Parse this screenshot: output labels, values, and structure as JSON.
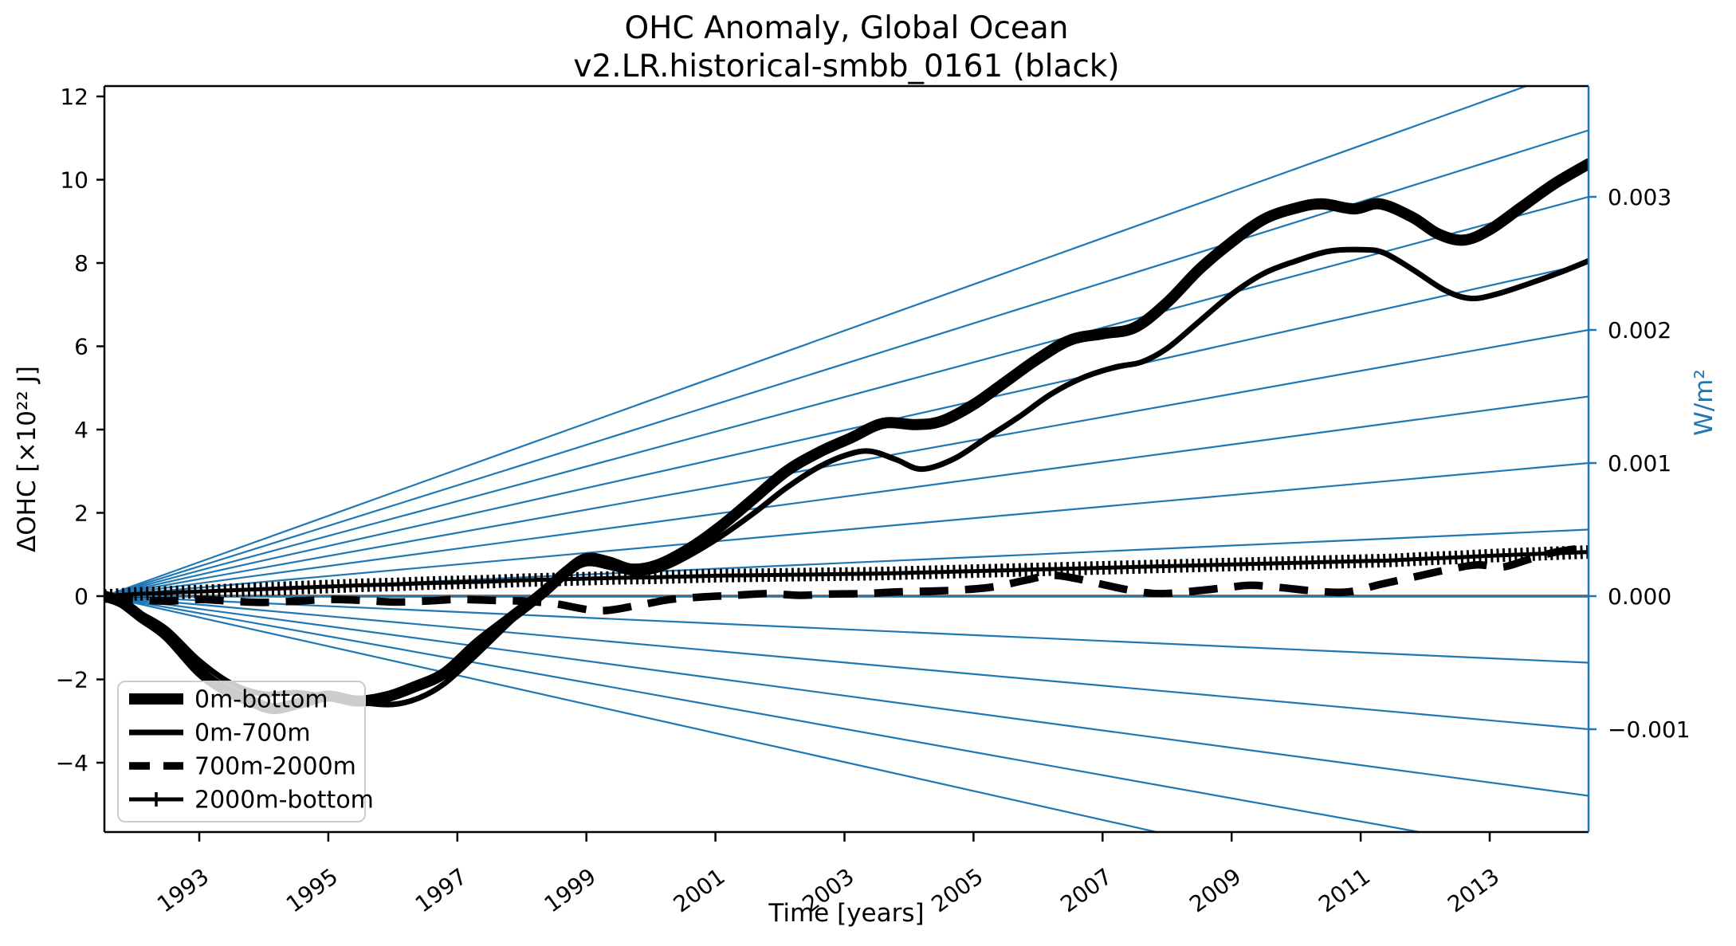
{
  "title": {
    "line1": "OHC Anomaly, Global Ocean",
    "line2": "v2.LR.historical-smbb_0161 (black)"
  },
  "axes": {
    "x": {
      "label": "Time [years]",
      "ticks": [
        {
          "v": 1993,
          "label": "1993"
        },
        {
          "v": 1995,
          "label": "1995"
        },
        {
          "v": 1997,
          "label": "1997"
        },
        {
          "v": 1999,
          "label": "1999"
        },
        {
          "v": 2001,
          "label": "2001"
        },
        {
          "v": 2003,
          "label": "2003"
        },
        {
          "v": 2005,
          "label": "2005"
        },
        {
          "v": 2007,
          "label": "2007"
        },
        {
          "v": 2009,
          "label": "2009"
        },
        {
          "v": 2011,
          "label": "2011"
        },
        {
          "v": 2013,
          "label": "2013"
        }
      ],
      "range": [
        1991.53,
        2014.53
      ]
    },
    "y_left": {
      "label": "ΔOHC [×10²² J]",
      "ticks": [
        {
          "v": 12,
          "label": "12"
        },
        {
          "v": 10,
          "label": "10"
        },
        {
          "v": 8,
          "label": "8"
        },
        {
          "v": 6,
          "label": "6"
        },
        {
          "v": 4,
          "label": "4"
        },
        {
          "v": 2,
          "label": "2"
        },
        {
          "v": 0,
          "label": "0"
        },
        {
          "v": -2,
          "label": "−2"
        },
        {
          "v": -4,
          "label": "−4"
        }
      ],
      "range": [
        -5.66,
        12.25
      ]
    },
    "y_right": {
      "label": "W/m²",
      "ticks": [
        {
          "v": 0.003,
          "label": "0.003"
        },
        {
          "v": 0.002,
          "label": "0.002"
        },
        {
          "v": 0.001,
          "label": "0.001"
        },
        {
          "v": 0.0,
          "label": "0.000"
        },
        {
          "v": -0.001,
          "label": "−0.001"
        }
      ],
      "range": [
        -0.00177,
        0.00383
      ]
    }
  },
  "legend": {
    "items": [
      {
        "key": "0m-bottom",
        "label": "0m-bottom"
      },
      {
        "key": "0m-700m",
        "label": "0m-700m"
      },
      {
        "key": "700m-2000m",
        "label": "700m-2000m"
      },
      {
        "key": "2000m-bottom",
        "label": "2000m-bottom"
      }
    ]
  },
  "colors": {
    "curves": "#000000",
    "flux_lines": "#1f77b4",
    "right_axis": "#1f77b4",
    "legend_border": "#cccccc"
  },
  "chart_data": {
    "type": "line",
    "title": "OHC Anomaly, Global Ocean v2.LR.historical-smbb_0161 (black)",
    "xlabel": "Time [years]",
    "ylabel_left": "ΔOHC [×10²² J]",
    "ylabel_right": "W/m²",
    "xlim": [
      1991.53,
      2014.53
    ],
    "ylim_left": [
      -5.66,
      12.25
    ],
    "grid": false,
    "legend_position": "lower left",
    "flux_reference_lines": {
      "comment": "straight blue lines radiating from (1991.53, 0); slope labeled by right axis in W/m^2",
      "origin": {
        "year": 1991.53,
        "ohc": 0.0
      },
      "rates_w_per_m2": [
        -0.0025,
        -0.002,
        -0.0015,
        -0.001,
        -0.0005,
        0.0,
        0.0005,
        0.001,
        0.0015,
        0.002,
        0.0025,
        0.003,
        0.0035,
        0.004
      ],
      "ohc_units_per_0p0005_at_right_edge": 1.598
    },
    "series": [
      {
        "name": "0m-bottom",
        "style": "thick solid black",
        "points": [
          [
            1991.53,
            0
          ],
          [
            1991.8,
            -0.15
          ],
          [
            1992.1,
            -0.5
          ],
          [
            1992.5,
            -0.95
          ],
          [
            1993.0,
            -1.8
          ],
          [
            1993.4,
            -2.25
          ],
          [
            1993.8,
            -2.52
          ],
          [
            1994.15,
            -2.7
          ],
          [
            1994.6,
            -2.55
          ],
          [
            1995.0,
            -2.4
          ],
          [
            1995.45,
            -2.52
          ],
          [
            1995.9,
            -2.42
          ],
          [
            1996.3,
            -2.2
          ],
          [
            1996.8,
            -1.85
          ],
          [
            1997.3,
            -1.15
          ],
          [
            1997.8,
            -0.55
          ],
          [
            1998.3,
            0.05
          ],
          [
            1998.7,
            0.6
          ],
          [
            1999.0,
            0.9
          ],
          [
            1999.35,
            0.82
          ],
          [
            1999.7,
            0.65
          ],
          [
            2000.1,
            0.75
          ],
          [
            2000.6,
            1.15
          ],
          [
            2001.1,
            1.7
          ],
          [
            2001.6,
            2.35
          ],
          [
            2002.1,
            3.0
          ],
          [
            2002.6,
            3.45
          ],
          [
            2003.1,
            3.8
          ],
          [
            2003.6,
            4.15
          ],
          [
            2004.1,
            4.12
          ],
          [
            2004.5,
            4.2
          ],
          [
            2005.0,
            4.6
          ],
          [
            2005.5,
            5.15
          ],
          [
            2006.0,
            5.7
          ],
          [
            2006.5,
            6.15
          ],
          [
            2007.0,
            6.3
          ],
          [
            2007.5,
            6.45
          ],
          [
            2008.0,
            7.05
          ],
          [
            2008.5,
            7.85
          ],
          [
            2009.0,
            8.5
          ],
          [
            2009.5,
            9.05
          ],
          [
            2010.0,
            9.32
          ],
          [
            2010.4,
            9.42
          ],
          [
            2010.9,
            9.3
          ],
          [
            2011.3,
            9.42
          ],
          [
            2011.8,
            9.1
          ],
          [
            2012.2,
            8.7
          ],
          [
            2012.6,
            8.55
          ],
          [
            2013.0,
            8.8
          ],
          [
            2013.5,
            9.35
          ],
          [
            2014.0,
            9.9
          ],
          [
            2014.53,
            10.38
          ]
        ]
      },
      {
        "name": "0m-700m",
        "style": "medium solid black",
        "points": [
          [
            1991.53,
            0
          ],
          [
            1991.8,
            -0.12
          ],
          [
            1992.1,
            -0.42
          ],
          [
            1992.5,
            -0.8
          ],
          [
            1993.0,
            -1.55
          ],
          [
            1993.5,
            -2.1
          ],
          [
            1994.0,
            -2.35
          ],
          [
            1994.5,
            -2.32
          ],
          [
            1995.0,
            -2.42
          ],
          [
            1995.5,
            -2.55
          ],
          [
            1996.0,
            -2.6
          ],
          [
            1996.4,
            -2.45
          ],
          [
            1996.8,
            -2.1
          ],
          [
            1997.3,
            -1.4
          ],
          [
            1997.8,
            -0.65
          ],
          [
            1998.25,
            0
          ],
          [
            1998.7,
            0.52
          ],
          [
            1999.0,
            0.78
          ],
          [
            1999.4,
            0.68
          ],
          [
            1999.75,
            0.55
          ],
          [
            2000.15,
            0.65
          ],
          [
            2000.6,
            0.98
          ],
          [
            2001.1,
            1.45
          ],
          [
            2001.6,
            2.0
          ],
          [
            2002.1,
            2.6
          ],
          [
            2002.6,
            3.1
          ],
          [
            2003.05,
            3.4
          ],
          [
            2003.4,
            3.48
          ],
          [
            2003.8,
            3.28
          ],
          [
            2004.2,
            3.05
          ],
          [
            2004.7,
            3.3
          ],
          [
            2005.2,
            3.8
          ],
          [
            2005.7,
            4.3
          ],
          [
            2006.2,
            4.85
          ],
          [
            2006.7,
            5.25
          ],
          [
            2007.2,
            5.5
          ],
          [
            2007.6,
            5.62
          ],
          [
            2008.0,
            5.95
          ],
          [
            2008.5,
            6.6
          ],
          [
            2009.0,
            7.25
          ],
          [
            2009.5,
            7.75
          ],
          [
            2010.0,
            8.05
          ],
          [
            2010.5,
            8.28
          ],
          [
            2011.0,
            8.32
          ],
          [
            2011.35,
            8.25
          ],
          [
            2011.8,
            7.85
          ],
          [
            2012.3,
            7.35
          ],
          [
            2012.7,
            7.15
          ],
          [
            2013.1,
            7.25
          ],
          [
            2013.6,
            7.5
          ],
          [
            2014.1,
            7.78
          ],
          [
            2014.53,
            8.05
          ]
        ]
      },
      {
        "name": "700m-2000m",
        "style": "dashed black",
        "points": [
          [
            1991.53,
            0
          ],
          [
            1992.0,
            -0.08
          ],
          [
            1992.5,
            -0.12
          ],
          [
            1993.0,
            -0.08
          ],
          [
            1993.5,
            -0.12
          ],
          [
            1994.0,
            -0.15
          ],
          [
            1994.5,
            -0.12
          ],
          [
            1995.0,
            -0.08
          ],
          [
            1995.5,
            -0.1
          ],
          [
            1996.0,
            -0.14
          ],
          [
            1996.5,
            -0.12
          ],
          [
            1997.0,
            -0.08
          ],
          [
            1997.5,
            -0.1
          ],
          [
            1998.0,
            -0.12
          ],
          [
            1998.5,
            -0.18
          ],
          [
            1999.2,
            -0.35
          ],
          [
            1999.8,
            -0.22
          ],
          [
            2000.3,
            -0.08
          ],
          [
            2000.8,
            -0.02
          ],
          [
            2001.3,
            0.02
          ],
          [
            2001.8,
            0.06
          ],
          [
            2002.3,
            0.02
          ],
          [
            2002.8,
            0.05
          ],
          [
            2003.3,
            0.06
          ],
          [
            2003.8,
            0.1
          ],
          [
            2004.3,
            0.12
          ],
          [
            2004.8,
            0.15
          ],
          [
            2005.3,
            0.22
          ],
          [
            2005.8,
            0.38
          ],
          [
            2006.2,
            0.5
          ],
          [
            2006.6,
            0.42
          ],
          [
            2007.0,
            0.28
          ],
          [
            2007.5,
            0.12
          ],
          [
            2007.9,
            0.06
          ],
          [
            2008.4,
            0.12
          ],
          [
            2008.9,
            0.2
          ],
          [
            2009.3,
            0.26
          ],
          [
            2009.8,
            0.2
          ],
          [
            2010.3,
            0.12
          ],
          [
            2010.8,
            0.1
          ],
          [
            2011.3,
            0.28
          ],
          [
            2011.8,
            0.45
          ],
          [
            2012.3,
            0.62
          ],
          [
            2012.8,
            0.75
          ],
          [
            2013.2,
            0.7
          ],
          [
            2013.6,
            0.88
          ],
          [
            2014.0,
            1.05
          ],
          [
            2014.53,
            1.18
          ]
        ]
      },
      {
        "name": "2000m-bottom",
        "style": "solid black with plus markers",
        "points": [
          [
            1991.53,
            0
          ],
          [
            1992.0,
            0.05
          ],
          [
            1992.5,
            0.08
          ],
          [
            1993.0,
            0.11
          ],
          [
            1993.5,
            0.14
          ],
          [
            1994.0,
            0.17
          ],
          [
            1994.5,
            0.2
          ],
          [
            1995.0,
            0.23
          ],
          [
            1995.5,
            0.26
          ],
          [
            1996.0,
            0.28
          ],
          [
            1996.5,
            0.31
          ],
          [
            1997.0,
            0.33
          ],
          [
            1997.5,
            0.35
          ],
          [
            1998.0,
            0.38
          ],
          [
            1998.5,
            0.4
          ],
          [
            1999.0,
            0.42
          ],
          [
            1999.5,
            0.44
          ],
          [
            2000.0,
            0.45
          ],
          [
            2000.5,
            0.47
          ],
          [
            2001.0,
            0.49
          ],
          [
            2001.5,
            0.5
          ],
          [
            2002.0,
            0.51
          ],
          [
            2002.5,
            0.52
          ],
          [
            2003.0,
            0.53
          ],
          [
            2003.5,
            0.54
          ],
          [
            2004.0,
            0.56
          ],
          [
            2004.5,
            0.58
          ],
          [
            2005.0,
            0.6
          ],
          [
            2005.5,
            0.62
          ],
          [
            2006.0,
            0.64
          ],
          [
            2006.5,
            0.66
          ],
          [
            2007.0,
            0.68
          ],
          [
            2007.5,
            0.7
          ],
          [
            2008.0,
            0.72
          ],
          [
            2008.5,
            0.74
          ],
          [
            2009.0,
            0.76
          ],
          [
            2009.5,
            0.78
          ],
          [
            2010.0,
            0.8
          ],
          [
            2010.5,
            0.82
          ],
          [
            2011.0,
            0.84
          ],
          [
            2011.5,
            0.86
          ],
          [
            2012.0,
            0.9
          ],
          [
            2012.5,
            0.93
          ],
          [
            2013.0,
            0.97
          ],
          [
            2013.5,
            1.0
          ],
          [
            2014.0,
            1.03
          ],
          [
            2014.53,
            1.06
          ]
        ]
      }
    ]
  }
}
